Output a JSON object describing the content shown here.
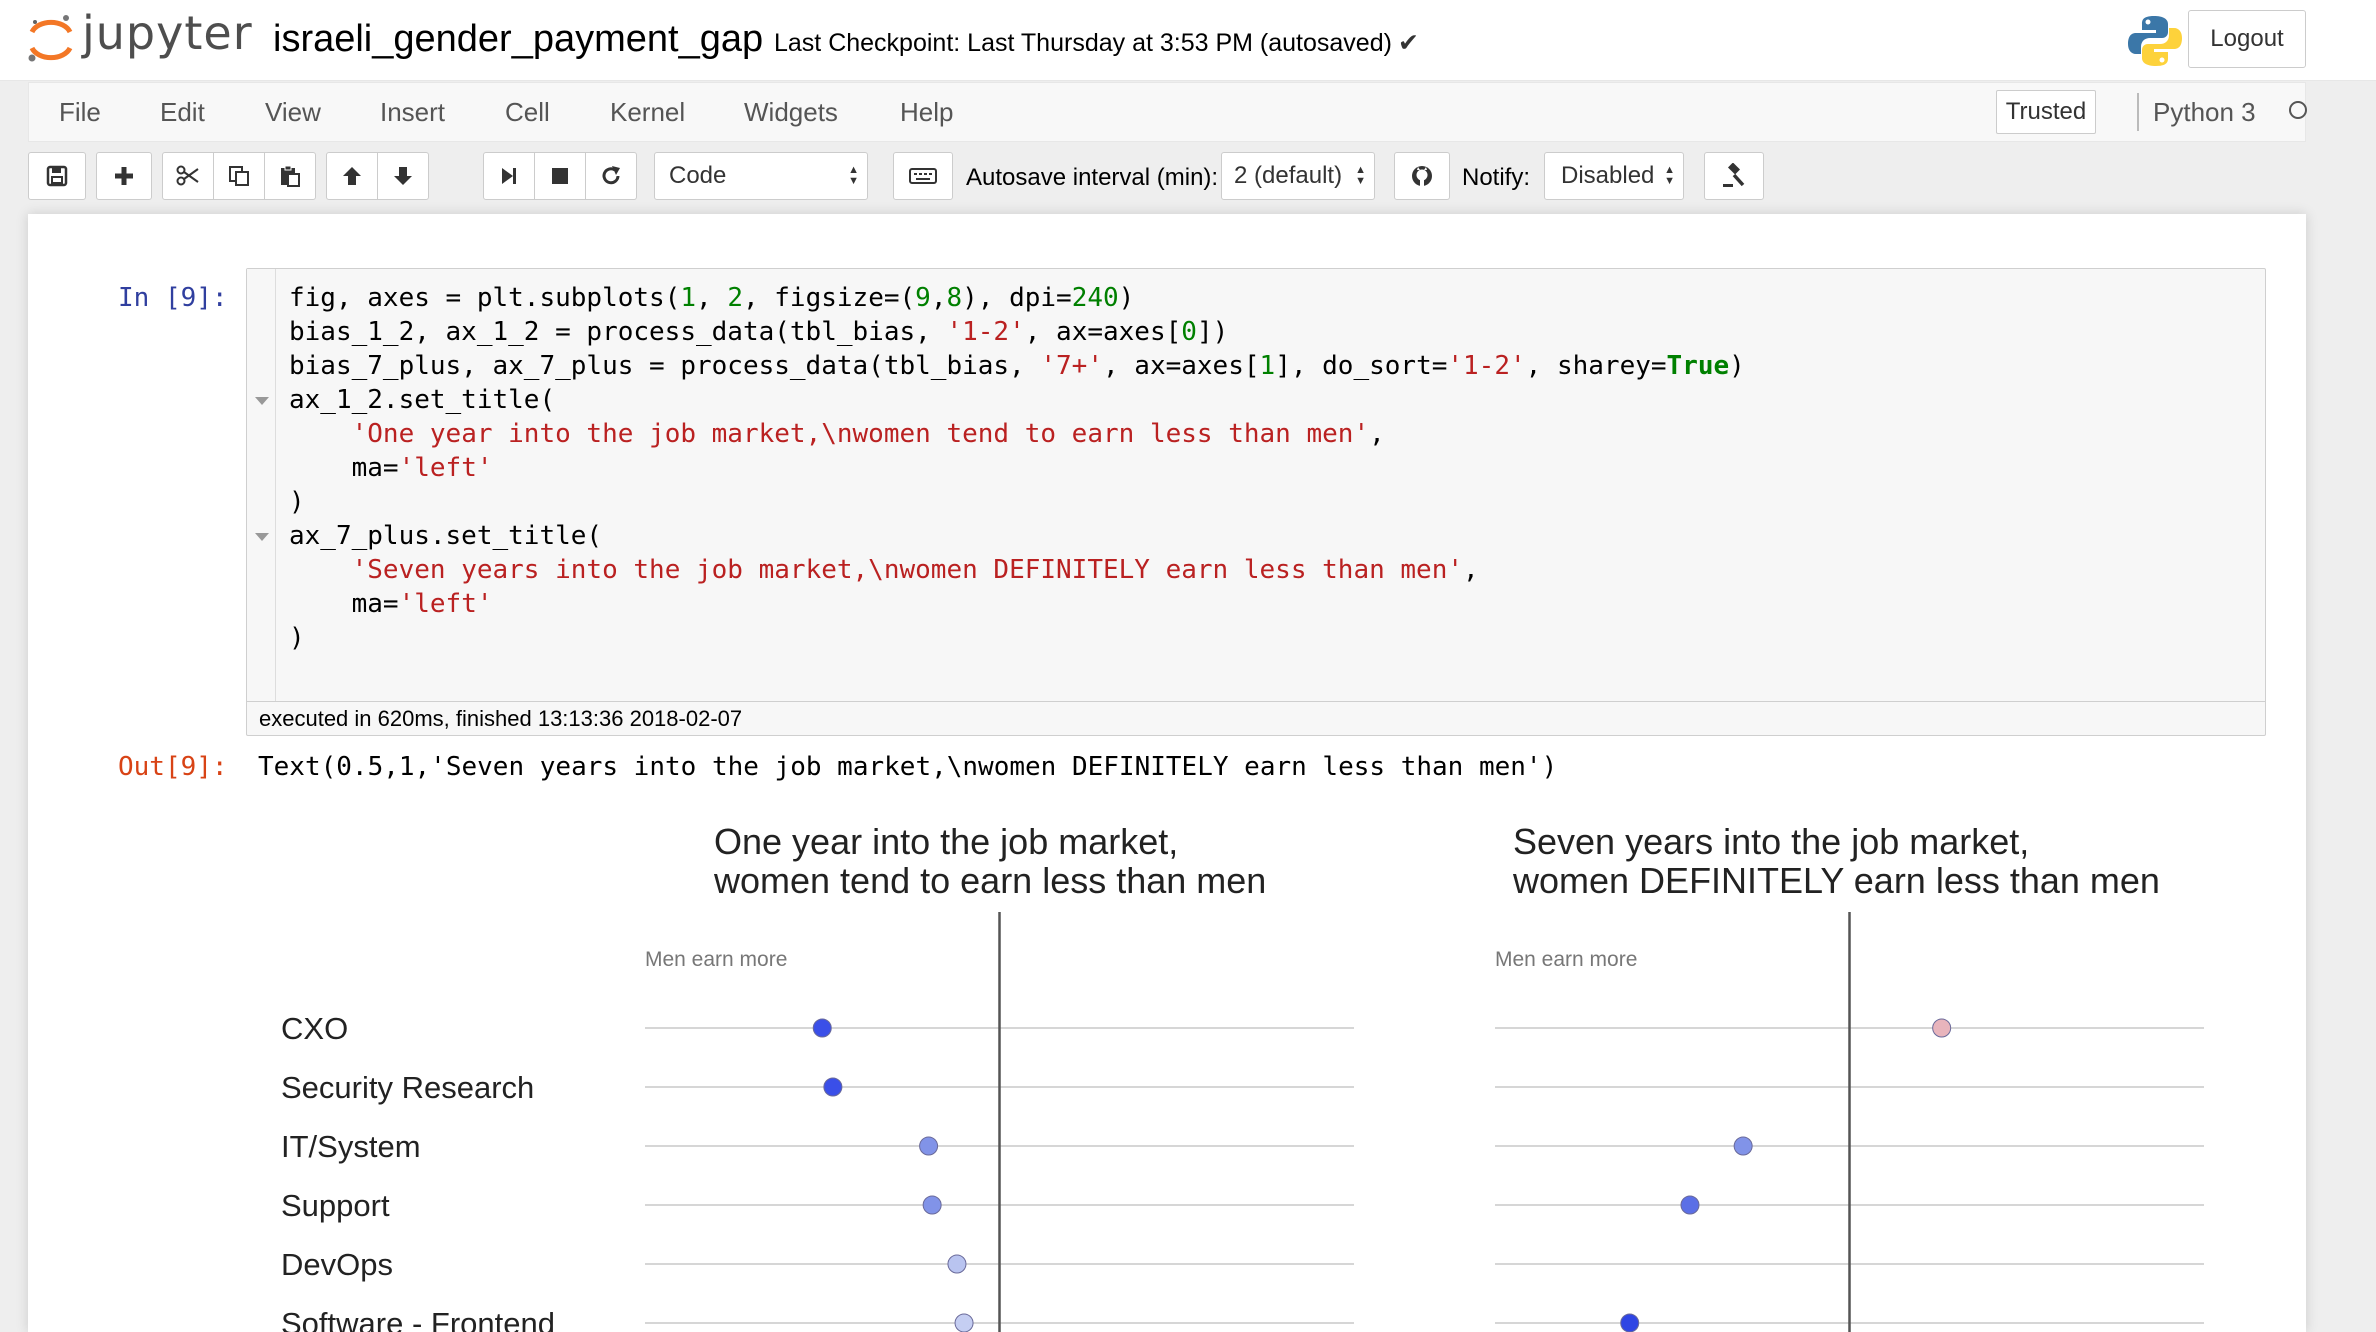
{
  "header": {
    "logo_text": "jupyter",
    "notebook_name": "israeli_gender_payment_gap",
    "checkpoint": "Last Checkpoint: Last Thursday at 3:53 PM (autosaved)",
    "logout_label": "Logout"
  },
  "menubar": {
    "items": [
      "File",
      "Edit",
      "View",
      "Insert",
      "Cell",
      "Kernel",
      "Widgets",
      "Help"
    ],
    "trusted_label": "Trusted",
    "kernel_name": "Python 3"
  },
  "toolbar": {
    "cell_type": "Code",
    "autosave_label": "Autosave interval (min):",
    "autosave_value": "2 (default)",
    "notify_label": "Notify:",
    "notify_value": "Disabled",
    "icons": [
      "save-icon",
      "plus-icon",
      "cut-icon",
      "copy-icon",
      "paste-icon",
      "arrow-up-icon",
      "arrow-down-icon",
      "step-forward-icon",
      "stop-icon",
      "refresh-icon",
      "keyboard-icon",
      "github-icon",
      "gavel-icon"
    ]
  },
  "cell": {
    "in_prompt": "In [9]:",
    "code_lines": [
      "fig, axes = plt.subplots(1, 2, figsize=(9,8), dpi=240)",
      "bias_1_2, ax_1_2 = process_data(tbl_bias, '1-2', ax=axes[0])",
      "bias_7_plus, ax_7_plus = process_data(tbl_bias, '7+', ax=axes[1], do_sort='1-2', sharey=True)",
      "ax_1_2.set_title(",
      "    'One year into the job market,\\nwomen tend to earn less than men',",
      "    ma='left'",
      ")",
      "ax_7_plus.set_title(",
      "    'Seven years into the job market,\\nwomen DEFINITELY earn less than men',",
      "    ma='left'",
      ")"
    ],
    "exec_info": "executed in 620ms, finished 13:13:36 2018-02-07",
    "out_prompt": "Out[9]:",
    "out_text": "Text(0.5,1,'Seven years into the job market,\\nwomen DEFINITELY earn less than men')"
  },
  "chart_data": [
    {
      "type": "scatter",
      "title_lines": [
        "One year into the job market,",
        "women tend to earn less than men"
      ],
      "annotation": "Men earn more",
      "categories": [
        "CXO",
        "Security Research",
        "IT/System",
        "Support",
        "DevOps",
        "Software - Frontend"
      ],
      "values": [
        -0.5,
        -0.47,
        -0.2,
        -0.19,
        -0.12,
        -0.1
      ],
      "colors": [
        "#3a4fe8",
        "#3a4fe8",
        "#8193e8",
        "#8193e8",
        "#b9c4f0",
        "#c5cef2"
      ],
      "xlim": [
        -1,
        1
      ]
    },
    {
      "type": "scatter",
      "title_lines": [
        "Seven years into the job market,",
        "women DEFINITELY earn less than men"
      ],
      "annotation": "Men earn more",
      "categories": [
        "CXO",
        "Security Research",
        "IT/System",
        "Support",
        "DevOps",
        "Software - Frontend"
      ],
      "values": [
        0.26,
        null,
        -0.3,
        -0.45,
        null,
        -0.62
      ],
      "colors": [
        "#e8b4bc",
        null,
        "#8193e8",
        "#5b6fe6",
        null,
        "#2f45e4"
      ],
      "xlim": [
        -1,
        1
      ]
    }
  ]
}
